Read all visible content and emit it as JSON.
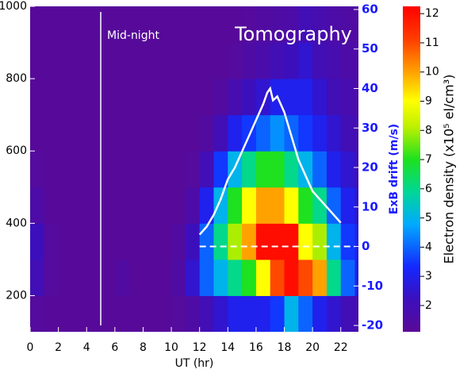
{
  "chart_data": {
    "type": "heatmap",
    "title": "Tomography",
    "x_label": "UT (hr)",
    "y2_label": "ExB drift (m/s)",
    "colorbar_label": "Electron density (x10⁵ el/cm³)",
    "xlim": [
      0,
      23.25
    ],
    "xticks": [
      0,
      2,
      4,
      6,
      8,
      10,
      12,
      14,
      16,
      18,
      20,
      22
    ],
    "ylim": [
      100,
      1000
    ],
    "yticks": [
      200,
      400,
      600,
      800,
      1000
    ],
    "y2lim": [
      -21.6,
      60.8
    ],
    "y2ticks": [
      -20,
      -10,
      0,
      10,
      20,
      30,
      40,
      50,
      60
    ],
    "clim": [
      1.1,
      12.25
    ],
    "cticks": [
      2,
      3,
      4,
      5,
      6,
      7,
      8,
      9,
      10,
      11,
      12
    ],
    "annotations": [
      {
        "text": "Mid-night",
        "x": 5
      }
    ],
    "reference_line": {
      "y2": 0,
      "x": [
        12,
        23
      ]
    },
    "density": {
      "hours": [
        0.5,
        1.5,
        2.5,
        3.5,
        4.5,
        5.5,
        6.5,
        7.5,
        8.5,
        9.5,
        10.5,
        11.5,
        12.5,
        13.5,
        14.5,
        15.5,
        16.5,
        17.5,
        18.5,
        19.5,
        20.5,
        21.5,
        22.5,
        23.5
      ],
      "altitude": [
        150,
        250,
        350,
        450,
        550,
        650,
        750,
        850,
        950
      ],
      "values": [
        [
          1.3,
          2.0,
          2.2,
          1.6,
          1.3,
          1.2,
          1.2,
          1.2,
          1.2
        ],
        [
          1.2,
          1.3,
          1.3,
          1.2,
          1.2,
          1.2,
          1.2,
          1.2,
          1.2
        ],
        [
          1.2,
          1.2,
          1.2,
          1.2,
          1.2,
          1.2,
          1.2,
          1.2,
          1.2
        ],
        [
          1.2,
          1.2,
          1.2,
          1.2,
          1.2,
          1.2,
          1.2,
          1.2,
          1.2
        ],
        [
          1.2,
          1.2,
          1.2,
          1.2,
          1.2,
          1.2,
          1.2,
          1.2,
          1.2
        ],
        [
          1.2,
          1.2,
          1.2,
          1.2,
          1.2,
          1.2,
          1.2,
          1.2,
          1.2
        ],
        [
          1.2,
          1.4,
          1.2,
          1.2,
          1.2,
          1.2,
          1.2,
          1.2,
          1.2
        ],
        [
          1.2,
          1.2,
          1.2,
          1.2,
          1.2,
          1.2,
          1.2,
          1.2,
          1.2
        ],
        [
          1.2,
          1.2,
          1.2,
          1.2,
          1.2,
          1.2,
          1.2,
          1.2,
          1.2
        ],
        [
          1.2,
          1.2,
          1.2,
          1.2,
          1.2,
          1.2,
          1.2,
          1.2,
          1.2
        ],
        [
          1.3,
          1.5,
          1.4,
          1.2,
          1.2,
          1.2,
          1.2,
          1.2,
          1.2
        ],
        [
          1.5,
          2.5,
          2.2,
          1.6,
          1.3,
          1.2,
          1.2,
          1.2,
          1.2
        ],
        [
          2.0,
          4,
          4,
          3,
          2,
          1.4,
          1.2,
          1.2,
          1.2
        ],
        [
          2.5,
          5,
          6,
          5,
          3.5,
          2,
          1.4,
          1.2,
          1.2
        ],
        [
          3,
          6,
          8,
          7,
          5,
          3,
          1.8,
          1.3,
          1.2
        ],
        [
          3,
          7,
          10,
          9,
          6,
          3.5,
          2.2,
          1.5,
          1.3
        ],
        [
          3,
          9,
          12,
          10,
          7,
          4,
          2.5,
          1.7,
          1.4
        ],
        [
          3.5,
          11,
          12,
          10,
          7,
          4.5,
          3,
          2,
          1.5
        ],
        [
          5,
          12,
          12,
          9,
          6,
          4,
          3,
          2.2,
          1.6
        ],
        [
          4,
          11,
          9,
          7,
          5,
          3.5,
          3,
          2.5,
          2
        ],
        [
          3,
          10,
          8,
          6,
          4,
          3,
          2.5,
          2,
          1.8
        ],
        [
          2.5,
          6,
          5,
          4,
          3,
          2.5,
          2,
          1.8,
          1.6
        ],
        [
          2,
          4,
          3.5,
          3,
          2.5,
          2,
          1.8,
          1.6,
          1.5
        ],
        [
          1.8,
          3,
          3,
          2.5,
          2,
          1.8,
          1.6,
          1.5,
          1.4
        ]
      ]
    },
    "series": [
      {
        "axis": "y2",
        "color": "#ffffff",
        "x": [
          12,
          12.5,
          13,
          13.5,
          14,
          14.5,
          15,
          15.5,
          16,
          16.5,
          16.8,
          17,
          17.2,
          17.5,
          18,
          18.5,
          19,
          19.5,
          20,
          20.5,
          21,
          21.5,
          22
        ],
        "values": [
          3,
          5,
          8,
          12,
          17,
          20,
          24,
          28,
          32,
          36,
          39,
          40,
          37,
          38,
          34,
          28,
          22,
          18,
          14,
          12,
          10,
          8,
          6
        ]
      }
    ]
  }
}
